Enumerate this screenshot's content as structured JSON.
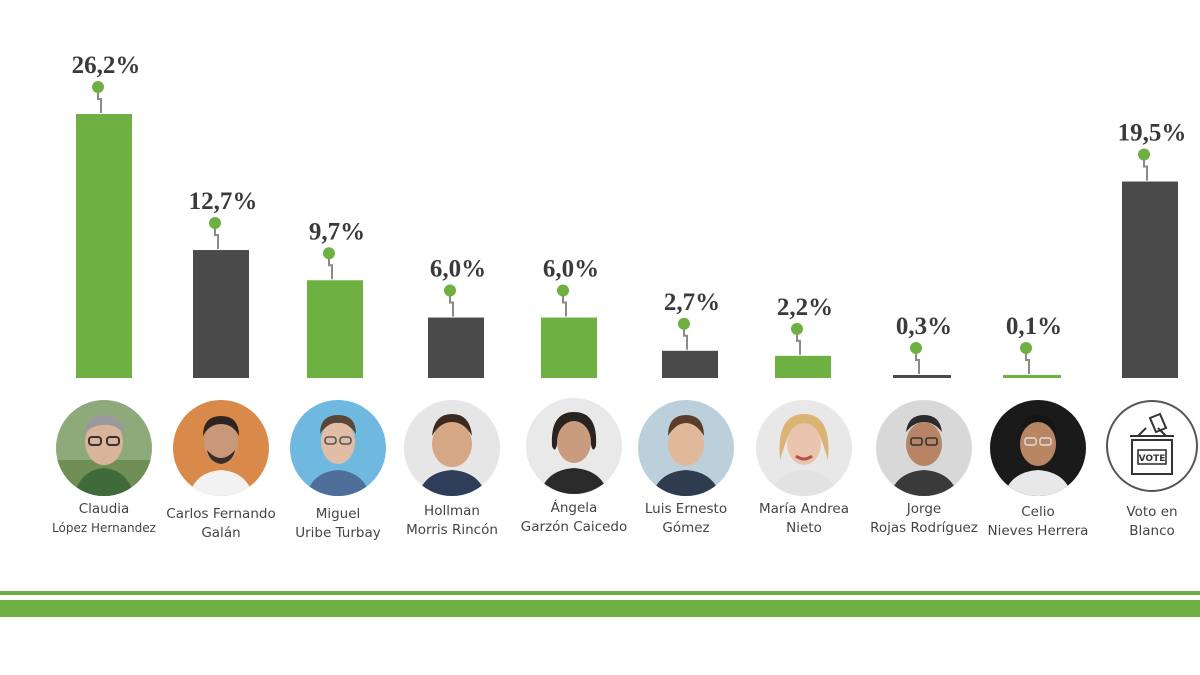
{
  "colors": {
    "green": "#6fb043",
    "gray": "#4a4a4a",
    "stem": "#8a8a8a"
  },
  "chart_data": {
    "type": "bar",
    "title": "",
    "xlabel": "",
    "ylabel": "",
    "ylim": [
      0,
      26.2
    ],
    "grid": false,
    "legend": "none",
    "categories": [
      "Claudia López Hernandez",
      "Carlos Fernando Galán",
      "Miguel Uribe Turbay",
      "Hollman Morris Rincón",
      "Ángela Garzón Caicedo",
      "Luis Ernesto Gómez",
      "María Andrea Nieto",
      "Jorge Rojas Rodríguez",
      "Celio Nieves Herrera",
      "Voto en Blanco"
    ],
    "values": [
      26.2,
      12.7,
      9.7,
      6.0,
      6.0,
      2.7,
      2.2,
      0.3,
      0.1,
      19.5
    ],
    "value_labels": [
      "26,2%",
      "12,7%",
      "9,7%",
      "6,0%",
      "6,0%",
      "2,7%",
      "2,2%",
      "0,3%",
      "0,1%",
      "19,5%"
    ],
    "bar_colors": [
      "green",
      "gray",
      "green",
      "gray",
      "green",
      "gray",
      "green",
      "gray",
      "green",
      "gray"
    ]
  },
  "candidates": [
    {
      "line1": "Claudia",
      "line2": "López Hernandez",
      "icon": "candidate-photo-icon"
    },
    {
      "line1": "Carlos Fernando",
      "line2": "Galán",
      "icon": "candidate-photo-icon"
    },
    {
      "line1": "Miguel",
      "line2": "Uribe Turbay",
      "icon": "candidate-photo-icon"
    },
    {
      "line1": "Hollman",
      "line2": "Morris Rincón",
      "icon": "candidate-photo-icon"
    },
    {
      "line1": "Ángela",
      "line2": "Garzón Caicedo",
      "icon": "candidate-photo-icon"
    },
    {
      "line1": "Luis Ernesto",
      "line2": "Gómez",
      "icon": "candidate-photo-icon"
    },
    {
      "line1": "María Andrea",
      "line2": "Nieto",
      "icon": "candidate-photo-icon"
    },
    {
      "line1": "Jorge",
      "line2": "Rojas Rodríguez",
      "icon": "candidate-photo-icon"
    },
    {
      "line1": "Celio",
      "line2": "Nieves Herrera",
      "icon": "candidate-photo-icon"
    },
    {
      "line1": "Voto en",
      "line2": "Blanco",
      "icon": "ballot-box-icon"
    }
  ],
  "vote_box_text": "VOTE"
}
